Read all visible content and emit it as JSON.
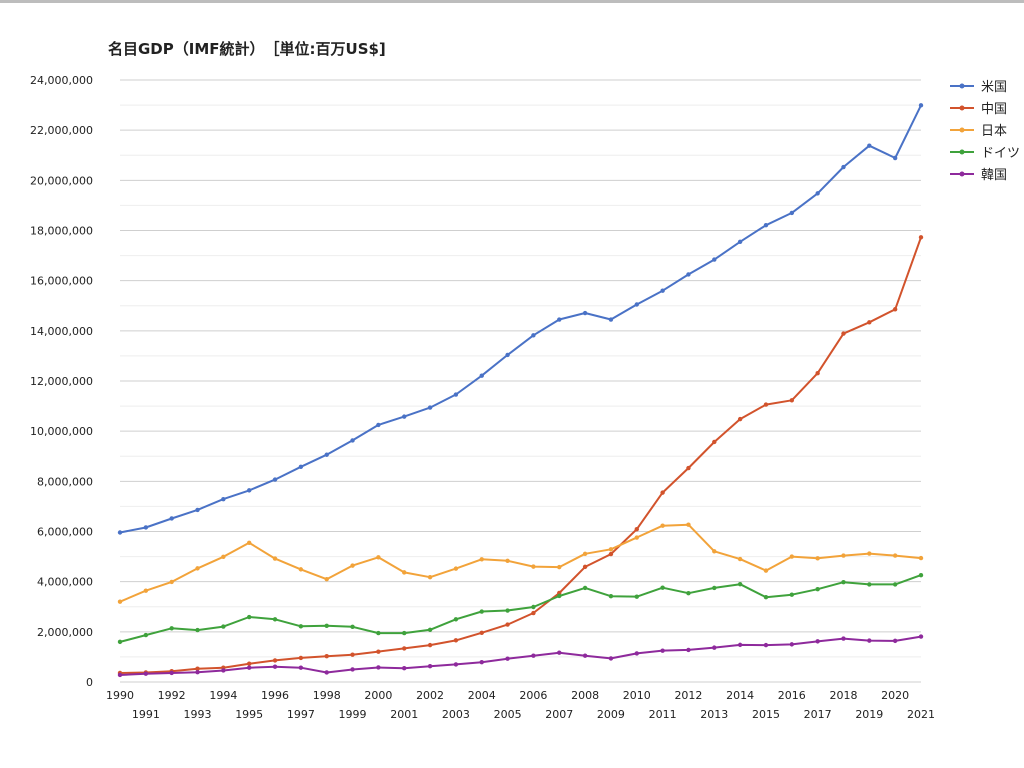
{
  "chart_data": {
    "type": "line",
    "title": "名目GDP（IMF統計）　［単位:百万US$]",
    "xlabel": "",
    "ylabel": "",
    "ylim": [
      0,
      24000000
    ],
    "y_ticks": [
      0,
      2000000,
      4000000,
      6000000,
      8000000,
      10000000,
      12000000,
      14000000,
      16000000,
      18000000,
      20000000,
      22000000,
      24000000
    ],
    "y_tick_labels": [
      "0",
      "2,000,000",
      "4,000,000",
      "6,000,000",
      "8,000,000",
      "10,000,000",
      "12,000,000",
      "14,000,000",
      "16,000,000",
      "18,000,000",
      "20,000,000",
      "22,000,000",
      "24,000,000"
    ],
    "grid": true,
    "legend_position": "right",
    "x": [
      "1990",
      "1991",
      "1992",
      "1993",
      "1994",
      "1995",
      "1996",
      "1997",
      "1998",
      "1999",
      "2000",
      "2001",
      "2002",
      "2003",
      "2004",
      "2005",
      "2006",
      "2007",
      "2008",
      "2009",
      "2010",
      "2011",
      "2012",
      "2013",
      "2014",
      "2015",
      "2016",
      "2017",
      "2018",
      "2019",
      "2020",
      "2021"
    ],
    "series": [
      {
        "name": "米国",
        "color": "#4a72c6",
        "values": [
          5960000,
          6160000,
          6520000,
          6860000,
          7290000,
          7640000,
          8070000,
          8580000,
          9060000,
          9630000,
          10250000,
          10580000,
          10940000,
          11460000,
          12210000,
          13040000,
          13820000,
          14450000,
          14710000,
          14450000,
          15050000,
          15600000,
          16250000,
          16840000,
          17550000,
          18210000,
          18700000,
          19480000,
          20530000,
          21380000,
          20890000,
          22990000
        ]
      },
      {
        "name": "中国",
        "color": "#d2532c",
        "values": [
          360000,
          380000,
          430000,
          530000,
          570000,
          730000,
          860000,
          960000,
          1030000,
          1090000,
          1210000,
          1340000,
          1470000,
          1660000,
          1960000,
          2290000,
          2750000,
          3550000,
          4590000,
          5100000,
          6090000,
          7550000,
          8530000,
          9570000,
          10480000,
          11060000,
          11230000,
          12310000,
          13890000,
          14340000,
          14860000,
          17730000
        ]
      },
      {
        "name": "日本",
        "color": "#f2a33a",
        "values": [
          3200000,
          3640000,
          3990000,
          4530000,
          4990000,
          5550000,
          4920000,
          4490000,
          4100000,
          4640000,
          4970000,
          4370000,
          4180000,
          4520000,
          4890000,
          4830000,
          4600000,
          4580000,
          5110000,
          5290000,
          5760000,
          6230000,
          6270000,
          5210000,
          4900000,
          4440000,
          5000000,
          4930000,
          5040000,
          5120000,
          5040000,
          4940000
        ]
      },
      {
        "name": "ドイツ",
        "color": "#3fa23c",
        "values": [
          1600000,
          1870000,
          2140000,
          2070000,
          2210000,
          2590000,
          2500000,
          2220000,
          2240000,
          2200000,
          1950000,
          1950000,
          2080000,
          2500000,
          2810000,
          2850000,
          2990000,
          3430000,
          3750000,
          3420000,
          3400000,
          3760000,
          3540000,
          3750000,
          3900000,
          3380000,
          3480000,
          3700000,
          3980000,
          3890000,
          3890000,
          4260000
        ]
      },
      {
        "name": "韓国",
        "color": "#8e2a9c",
        "values": [
          280000,
          330000,
          360000,
          390000,
          460000,
          570000,
          610000,
          570000,
          380000,
          500000,
          580000,
          550000,
          630000,
          700000,
          790000,
          930000,
          1050000,
          1170000,
          1050000,
          940000,
          1140000,
          1250000,
          1280000,
          1370000,
          1480000,
          1470000,
          1500000,
          1620000,
          1730000,
          1650000,
          1640000,
          1810000
        ]
      }
    ]
  }
}
